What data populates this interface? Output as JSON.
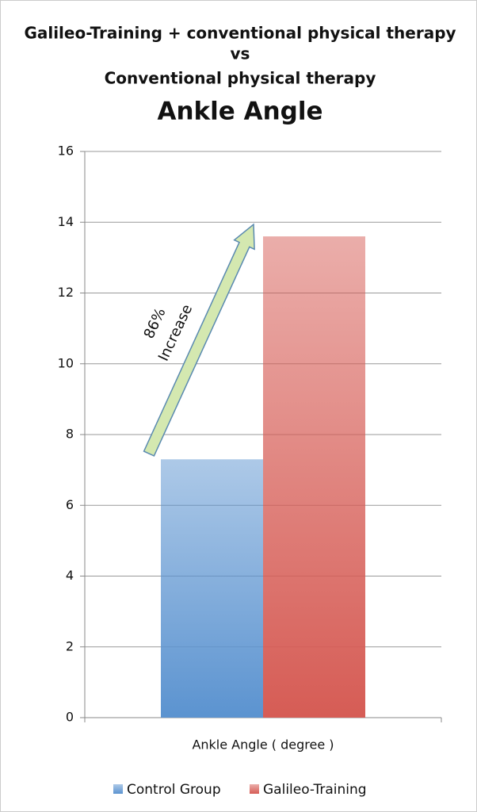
{
  "chart_data": {
    "type": "bar",
    "subtitle_lines": [
      "Galileo-Training + conventional physical therapy",
      "vs",
      "Conventional physical therapy"
    ],
    "title": "Ankle Angle",
    "categories": [
      "Ankle Angle ( degree )"
    ],
    "series": [
      {
        "name": "Control Group",
        "color": "#5b93d0",
        "values": [
          7.3
        ]
      },
      {
        "name": "Galileo-Training",
        "color": "#d65c55",
        "values": [
          13.6
        ]
      }
    ],
    "annotations": [
      "86%",
      "Increase"
    ],
    "ylim": [
      0,
      16
    ],
    "yticks": [
      0,
      2,
      4,
      6,
      8,
      10,
      12,
      14,
      16
    ],
    "grid": true
  }
}
